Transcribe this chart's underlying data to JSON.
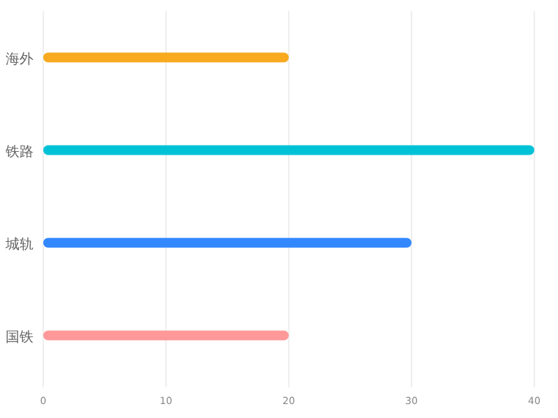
{
  "chart_data": {
    "type": "bar",
    "orientation": "horizontal",
    "categories": [
      "海外",
      "铁路",
      "城轨",
      "国铁"
    ],
    "values": [
      20,
      40,
      30,
      20
    ],
    "colors": [
      "#f8a91e",
      "#00c2d6",
      "#3388ff",
      "#ff9999"
    ],
    "xlim": [
      0,
      40
    ],
    "xticks": [
      0,
      10,
      20,
      30,
      40
    ],
    "grid": "x"
  }
}
